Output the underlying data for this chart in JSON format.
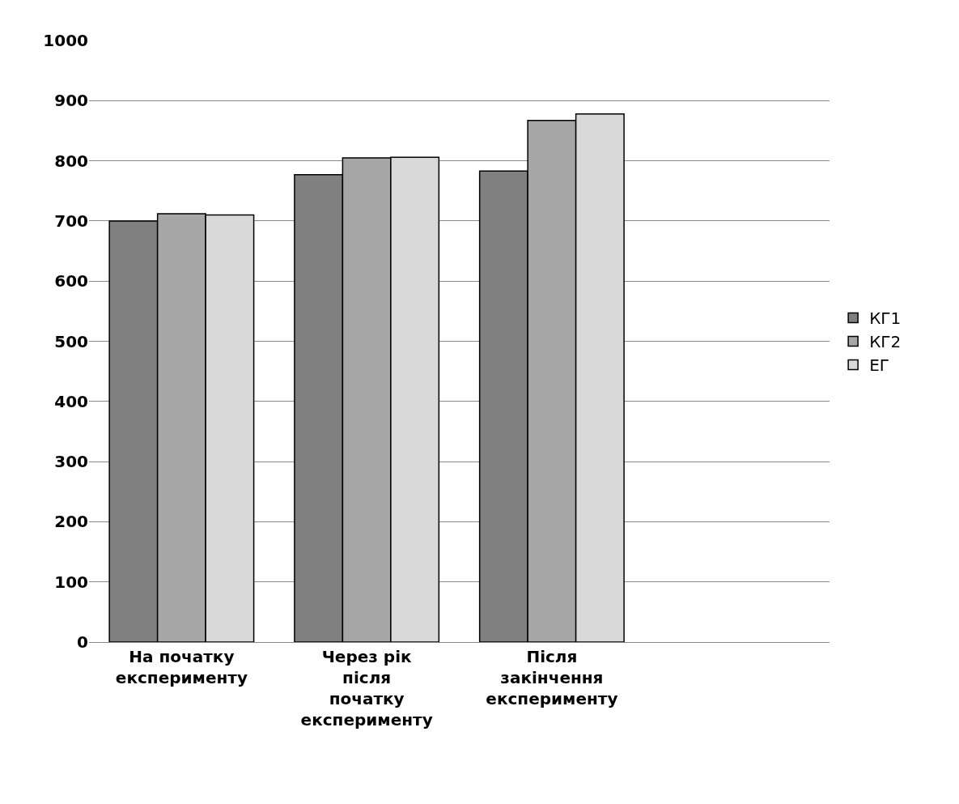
{
  "chart_data": {
    "type": "bar",
    "categories": [
      "На початку експерименту",
      "Через рік після початку експерименту",
      "Після закінчення експерименту",
      null
    ],
    "series": [
      {
        "name": "КГ1",
        "color": "#808080",
        "values": [
          700,
          777,
          783,
          null
        ]
      },
      {
        "name": "КГ2",
        "color": "#a6a6a6",
        "values": [
          712,
          805,
          867,
          null
        ]
      },
      {
        "name": "ЕГ",
        "color": "#d9d9d9",
        "values": [
          710,
          806,
          878,
          null
        ]
      }
    ],
    "ylim": [
      0,
      1000
    ],
    "yticks": [
      0,
      100,
      200,
      300,
      400,
      500,
      600,
      700,
      800,
      900,
      1000
    ],
    "grid": "y",
    "legend": "right"
  }
}
